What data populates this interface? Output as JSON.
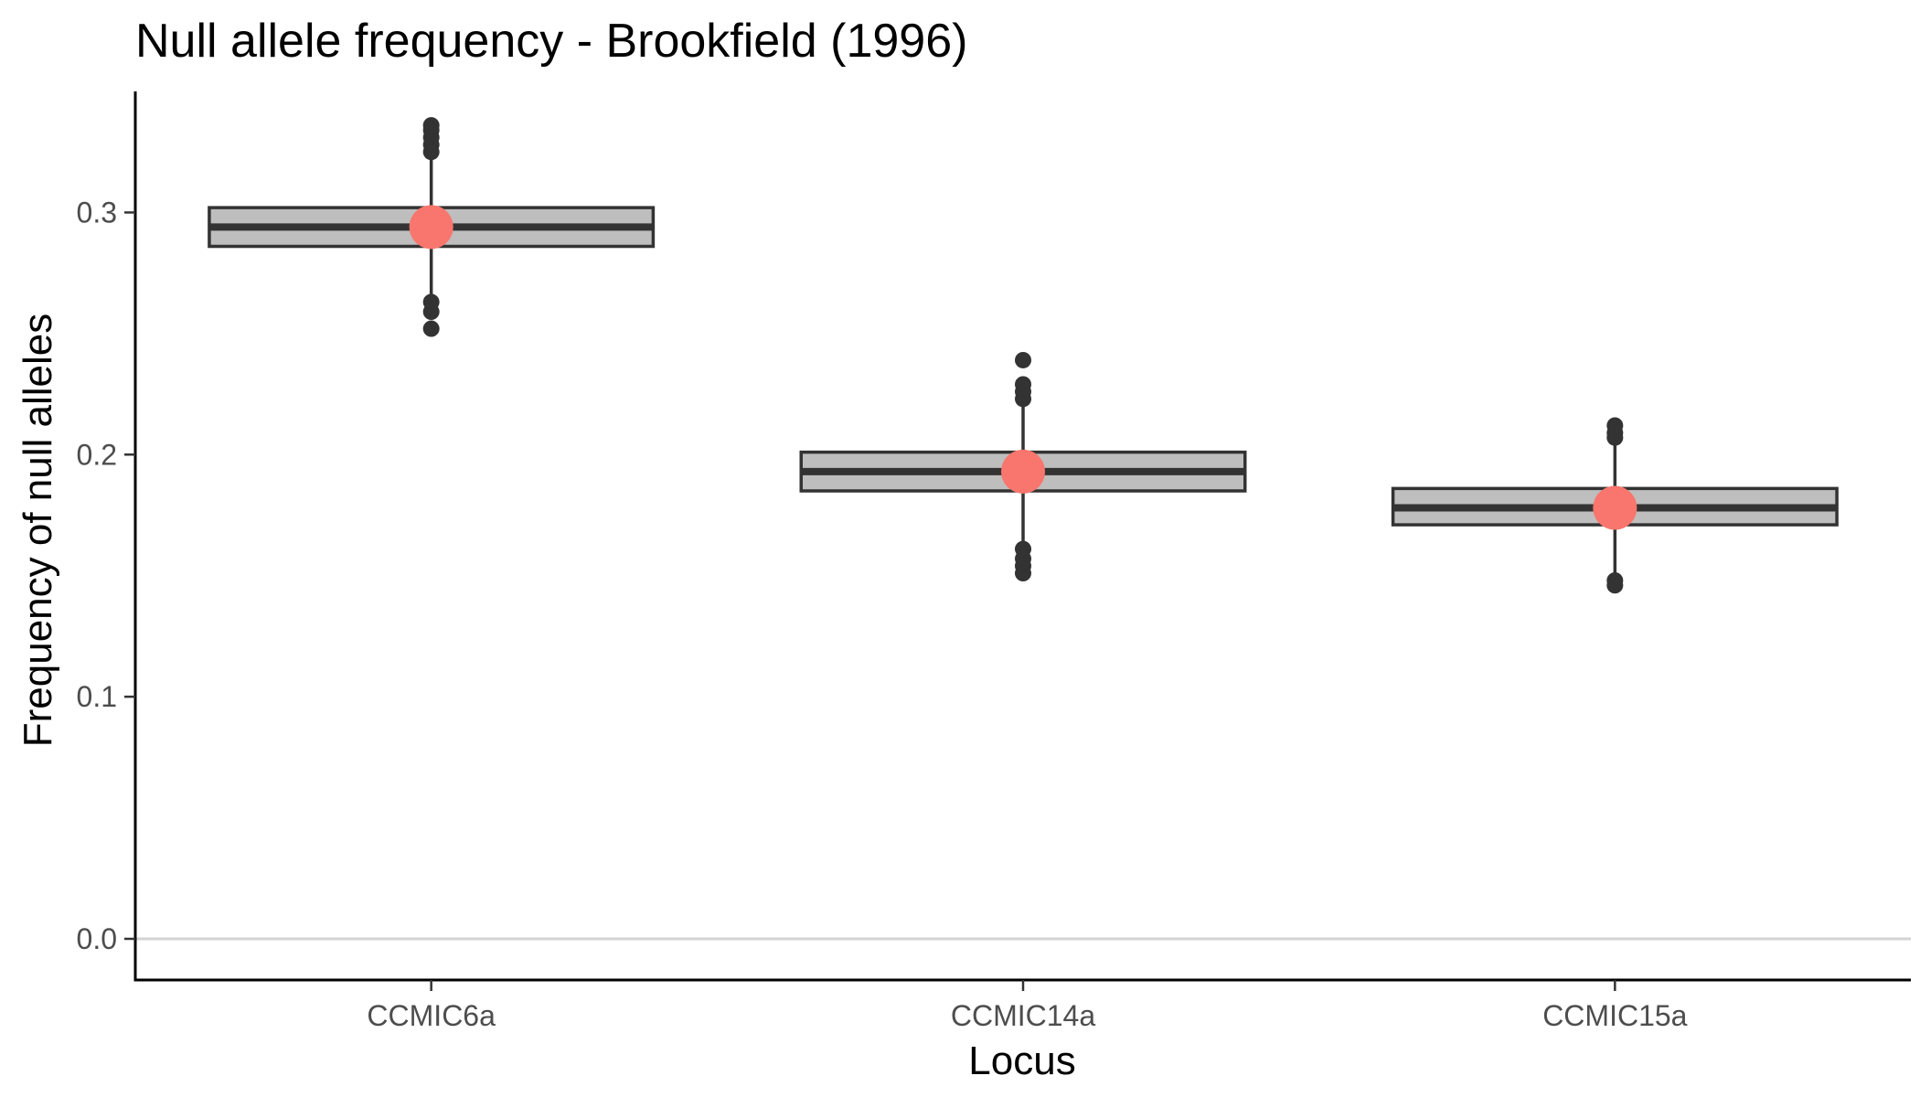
{
  "chart_data": {
    "type": "boxplot",
    "title": "Null allele frequency - Brookfield (1996)",
    "xlabel": "Locus",
    "ylabel": "Frequency of null alleles",
    "ylim": [
      -0.017,
      0.35
    ],
    "yticks": [
      0.0,
      0.1,
      0.2,
      0.3
    ],
    "ytick_labels": [
      "0.0",
      "0.1",
      "0.2",
      "0.3"
    ],
    "categories": [
      "CCMIC6a",
      "CCMIC14a",
      "CCMIC15a"
    ],
    "reference_line": 0.0,
    "grid": false,
    "legend": "none",
    "boxes": [
      {
        "category": "CCMIC6a",
        "q1": 0.286,
        "median": 0.294,
        "q3": 0.302,
        "whisker_low": 0.265,
        "whisker_high": 0.323,
        "outliers": [
          0.336,
          0.334,
          0.331,
          0.328,
          0.325,
          0.263,
          0.259,
          0.252
        ],
        "point_estimate": 0.294
      },
      {
        "category": "CCMIC14a",
        "q1": 0.185,
        "median": 0.193,
        "q3": 0.201,
        "whisker_low": 0.163,
        "whisker_high": 0.221,
        "outliers": [
          0.239,
          0.229,
          0.226,
          0.223,
          0.161,
          0.157,
          0.154,
          0.151
        ],
        "point_estimate": 0.193
      },
      {
        "category": "CCMIC15a",
        "q1": 0.171,
        "median": 0.178,
        "q3": 0.186,
        "whisker_low": 0.149,
        "whisker_high": 0.206,
        "outliers": [
          0.212,
          0.209,
          0.207,
          0.148,
          0.146
        ],
        "point_estimate": 0.178
      }
    ],
    "colors": {
      "box_fill": "#bebebe",
      "box_stroke": "#333333",
      "outlier": "#333333",
      "point_estimate": "#f8766d",
      "reference_line": "#d3d3d3",
      "axis": "#000000"
    }
  }
}
